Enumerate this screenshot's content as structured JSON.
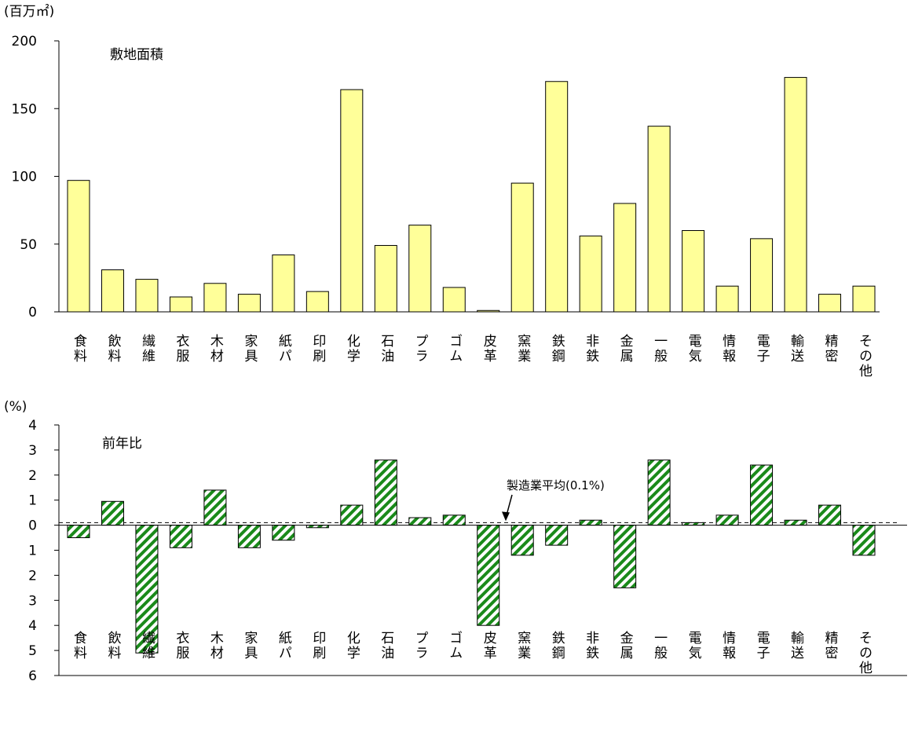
{
  "chart_data": [
    {
      "type": "bar",
      "title": "敷地面積",
      "y_label": "(百万㎡)",
      "categories": [
        "食料",
        "飲料",
        "繊維",
        "衣服",
        "木材",
        "家具",
        "紙パ",
        "印刷",
        "化学",
        "石油",
        "プラ",
        "ゴム",
        "皮革",
        "窯業",
        "鉄鋼",
        "非鉄",
        "金属",
        "一般",
        "電気",
        "情報",
        "電子",
        "輸送",
        "精密",
        "その他"
      ],
      "values": [
        97,
        31,
        24,
        11,
        21,
        13,
        42,
        15,
        164,
        49,
        64,
        18,
        1,
        95,
        170,
        56,
        80,
        137,
        60,
        19,
        54,
        173,
        13,
        19
      ],
      "color": "#ffff99",
      "ylim": [
        0,
        200
      ],
      "yticks": [
        0,
        50,
        100,
        150,
        200
      ]
    },
    {
      "type": "bar",
      "title": "前年比",
      "y_label": "(%)",
      "categories": [
        "食料",
        "飲料",
        "繊維",
        "衣服",
        "木材",
        "家具",
        "紙パ",
        "印刷",
        "化学",
        "石油",
        "プラ",
        "ゴム",
        "皮革",
        "窯業",
        "鉄鋼",
        "非鉄",
        "金属",
        "一般",
        "電気",
        "情報",
        "電子",
        "輸送",
        "精密",
        "その他"
      ],
      "values": [
        -0.5,
        0.95,
        -5.1,
        -0.9,
        1.4,
        -0.9,
        -0.6,
        -0.1,
        0.8,
        2.6,
        0.3,
        0.4,
        -4.0,
        -1.2,
        -0.8,
        0.2,
        -2.5,
        2.6,
        0.1,
        0.4,
        2.4,
        0.2,
        0.8,
        -1.2
      ],
      "color": "#1a8a1a",
      "ylim": [
        -6,
        4
      ],
      "yticks": [
        4,
        3,
        2,
        1,
        0,
        {
          "value": -1,
          "label": "1"
        },
        {
          "value": -2,
          "label": "2"
        },
        {
          "value": -3,
          "label": "3"
        },
        {
          "value": -4,
          "label": "4"
        },
        {
          "value": -5,
          "label": "5"
        },
        {
          "value": -6,
          "label": "6"
        }
      ],
      "reference_line": {
        "value": 0.1,
        "label": "製造業平均(0.1%)"
      }
    }
  ]
}
